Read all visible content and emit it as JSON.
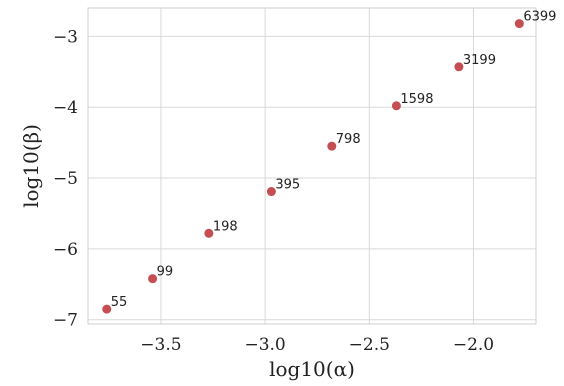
{
  "colors": {
    "point": "#c44e52",
    "grid": "#d9d9d9",
    "frame": "#cfcfcf",
    "background": "#ffffff"
  },
  "chart_data": {
    "type": "scatter",
    "title": "",
    "xlabel": "log10(α)",
    "ylabel": "log10(β)",
    "xlim": [
      -3.85,
      -1.7
    ],
    "ylim": [
      -7.06,
      -2.6
    ],
    "grid": true,
    "xticks": [
      -3.5,
      -3.0,
      -2.5,
      -2.0
    ],
    "xtick_labels": [
      "−3.5",
      "−3.0",
      "−2.5",
      "−2.0"
    ],
    "yticks": [
      -7,
      -6,
      -5,
      -4,
      -3
    ],
    "ytick_labels": [
      "−7",
      "−6",
      "−5",
      "−4",
      "−3"
    ],
    "points": [
      {
        "x": -3.76,
        "y": -6.85,
        "label": "55"
      },
      {
        "x": -3.54,
        "y": -6.42,
        "label": "99"
      },
      {
        "x": -3.27,
        "y": -5.78,
        "label": "198"
      },
      {
        "x": -2.97,
        "y": -5.19,
        "label": "395"
      },
      {
        "x": -2.68,
        "y": -4.55,
        "label": "798"
      },
      {
        "x": -2.37,
        "y": -3.98,
        "label": "1598"
      },
      {
        "x": -2.07,
        "y": -3.43,
        "label": "3199"
      },
      {
        "x": -1.78,
        "y": -2.82,
        "label": "6399"
      }
    ]
  }
}
